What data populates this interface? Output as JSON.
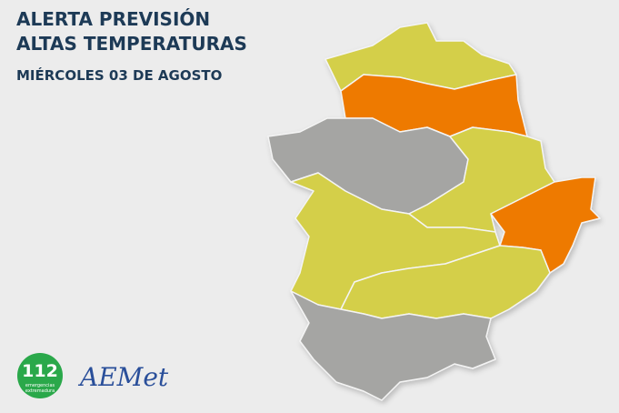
{
  "header": {
    "title_lines": [
      "ALERTA PREVISIÓN",
      "ALTAS TEMPERATURAS"
    ],
    "date": "MIÉRCOLES 03 DE AGOSTO"
  },
  "logos": {
    "emergency": {
      "number": "112",
      "lines": [
        "emergencias",
        "extremadura"
      ]
    },
    "aemet": "AEMet"
  }
}
